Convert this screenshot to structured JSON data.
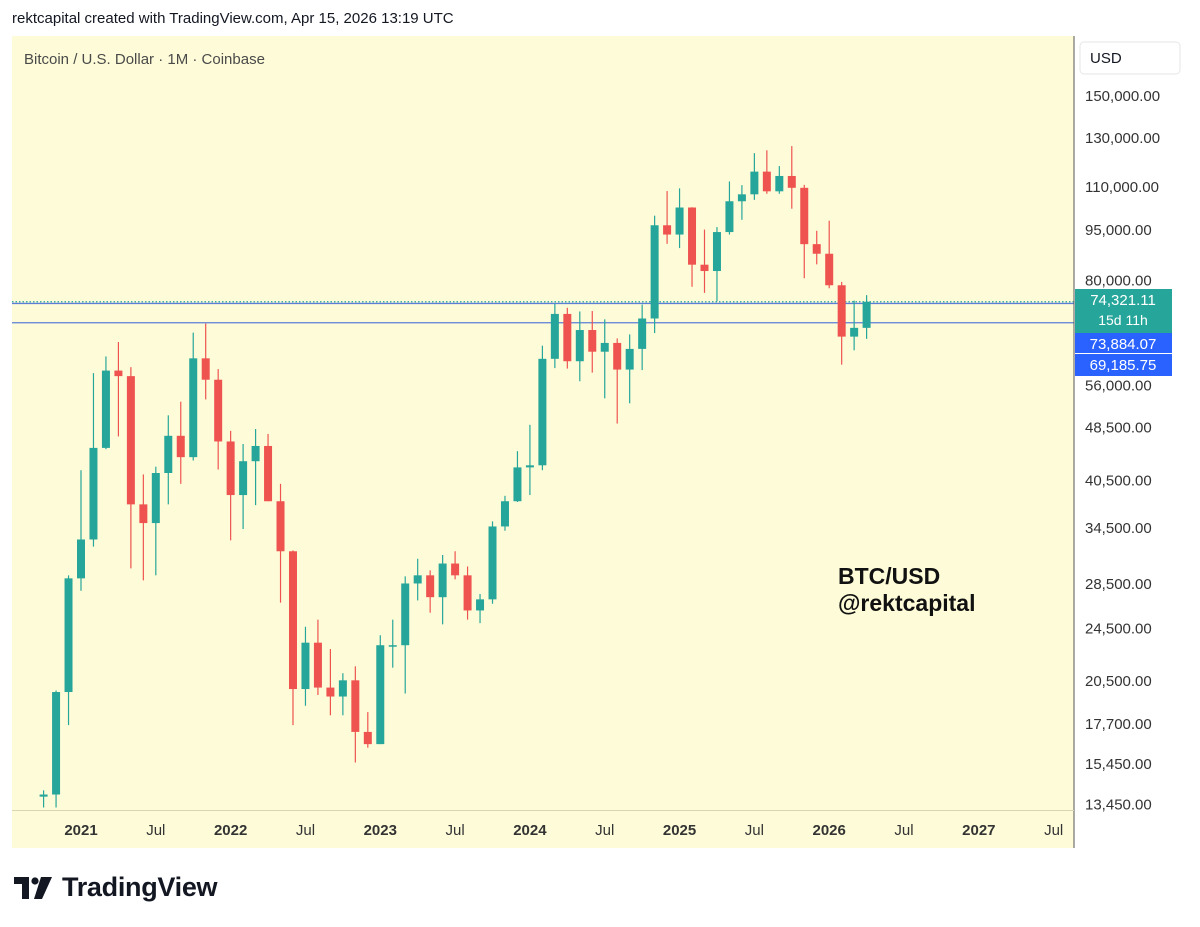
{
  "header": {
    "caption": "rektcapital created with TradingView.com, Apr 15, 2026 13:19 UTC"
  },
  "footer": {
    "brand": "TradingView"
  },
  "colors": {
    "up": "#26a69a",
    "down": "#ef5350",
    "background": "#fefcd8",
    "hline": "#5b7fd9",
    "price_tag_blue": "#2962ff",
    "price_tag_green": "#26a69a"
  },
  "chart_data": {
    "type": "candlestick",
    "title": "Bitcoin / U.S. Dollar · 1M · Coinbase",
    "currency_label": "USD",
    "y_scale": "log",
    "ylim": [
      13200,
      165000
    ],
    "y_ticks": [
      "150,000.00",
      "130,000.00",
      "110,000.00",
      "95,000.00",
      "80,000.00",
      "56,000.00",
      "48,500.00",
      "40,500.00",
      "34,500.00",
      "28,500.00",
      "24,500.00",
      "20,500.00",
      "17,700.00",
      "15,450.00",
      "13,450.00"
    ],
    "x_ticks": [
      {
        "label": "2021",
        "month": "2021-01",
        "bold": true
      },
      {
        "label": "Jul",
        "month": "2021-07",
        "bold": false
      },
      {
        "label": "2022",
        "month": "2022-01",
        "bold": true
      },
      {
        "label": "Jul",
        "month": "2022-07",
        "bold": false
      },
      {
        "label": "2023",
        "month": "2023-01",
        "bold": true
      },
      {
        "label": "Jul",
        "month": "2023-07",
        "bold": false
      },
      {
        "label": "2024",
        "month": "2024-01",
        "bold": true
      },
      {
        "label": "Jul",
        "month": "2024-07",
        "bold": false
      },
      {
        "label": "2025",
        "month": "2025-01",
        "bold": true
      },
      {
        "label": "Jul",
        "month": "2025-07",
        "bold": false
      },
      {
        "label": "2026",
        "month": "2026-01",
        "bold": true
      },
      {
        "label": "Jul",
        "month": "2026-07",
        "bold": false
      },
      {
        "label": "2027",
        "month": "2027-01",
        "bold": true
      },
      {
        "label": "Jul",
        "month": "2027-07",
        "bold": false
      }
    ],
    "candles": [
      {
        "t": "2020-10",
        "o": 13800,
        "h": 14100,
        "l": 13300,
        "c": 13900
      },
      {
        "t": "2020-11",
        "o": 13900,
        "h": 19800,
        "l": 13300,
        "c": 19700
      },
      {
        "t": "2020-12",
        "o": 19700,
        "h": 29300,
        "l": 17600,
        "c": 29000
      },
      {
        "t": "2021-01",
        "o": 29000,
        "h": 41900,
        "l": 27800,
        "c": 33100
      },
      {
        "t": "2021-02",
        "o": 33100,
        "h": 58300,
        "l": 32300,
        "c": 45200
      },
      {
        "t": "2021-03",
        "o": 45200,
        "h": 61700,
        "l": 45000,
        "c": 58800
      },
      {
        "t": "2021-04",
        "o": 58800,
        "h": 64800,
        "l": 47000,
        "c": 57700
      },
      {
        "t": "2021-05",
        "o": 57700,
        "h": 59500,
        "l": 30000,
        "c": 37300
      },
      {
        "t": "2021-06",
        "o": 37300,
        "h": 41300,
        "l": 28800,
        "c": 35000
      },
      {
        "t": "2021-07",
        "o": 35000,
        "h": 42400,
        "l": 29300,
        "c": 41500
      },
      {
        "t": "2021-08",
        "o": 41500,
        "h": 50500,
        "l": 37300,
        "c": 47100
      },
      {
        "t": "2021-09",
        "o": 47100,
        "h": 52900,
        "l": 40000,
        "c": 43800
      },
      {
        "t": "2021-10",
        "o": 43800,
        "h": 66900,
        "l": 43300,
        "c": 61300
      },
      {
        "t": "2021-11",
        "o": 61300,
        "h": 69000,
        "l": 53300,
        "c": 57000
      },
      {
        "t": "2021-12",
        "o": 57000,
        "h": 59100,
        "l": 42000,
        "c": 46200
      },
      {
        "t": "2022-01",
        "o": 46200,
        "h": 47900,
        "l": 33000,
        "c": 38500
      },
      {
        "t": "2022-02",
        "o": 38500,
        "h": 45800,
        "l": 34300,
        "c": 43200
      },
      {
        "t": "2022-03",
        "o": 43200,
        "h": 48200,
        "l": 37200,
        "c": 45500
      },
      {
        "t": "2022-04",
        "o": 45500,
        "h": 47400,
        "l": 37700,
        "c": 37700
      },
      {
        "t": "2022-05",
        "o": 37700,
        "h": 40000,
        "l": 26700,
        "c": 31800
      },
      {
        "t": "2022-06",
        "o": 31800,
        "h": 31900,
        "l": 17600,
        "c": 19900
      },
      {
        "t": "2022-07",
        "o": 19900,
        "h": 24600,
        "l": 18800,
        "c": 23300
      },
      {
        "t": "2022-08",
        "o": 23300,
        "h": 25200,
        "l": 19500,
        "c": 20000
      },
      {
        "t": "2022-09",
        "o": 20000,
        "h": 22800,
        "l": 18200,
        "c": 19400
      },
      {
        "t": "2022-10",
        "o": 19400,
        "h": 21000,
        "l": 18200,
        "c": 20500
      },
      {
        "t": "2022-11",
        "o": 20500,
        "h": 21500,
        "l": 15500,
        "c": 17200
      },
      {
        "t": "2022-12",
        "o": 17200,
        "h": 18400,
        "l": 16300,
        "c": 16500
      },
      {
        "t": "2023-01",
        "o": 16500,
        "h": 23900,
        "l": 16500,
        "c": 23100
      },
      {
        "t": "2023-02",
        "o": 23100,
        "h": 25200,
        "l": 21400,
        "c": 23100
      },
      {
        "t": "2023-03",
        "o": 23100,
        "h": 29200,
        "l": 19600,
        "c": 28500
      },
      {
        "t": "2023-04",
        "o": 28500,
        "h": 31000,
        "l": 26900,
        "c": 29300
      },
      {
        "t": "2023-05",
        "o": 29300,
        "h": 29800,
        "l": 25800,
        "c": 27200
      },
      {
        "t": "2023-06",
        "o": 27200,
        "h": 31400,
        "l": 24800,
        "c": 30500
      },
      {
        "t": "2023-07",
        "o": 30500,
        "h": 31800,
        "l": 28900,
        "c": 29300
      },
      {
        "t": "2023-08",
        "o": 29300,
        "h": 30200,
        "l": 25200,
        "c": 26000
      },
      {
        "t": "2023-09",
        "o": 26000,
        "h": 27500,
        "l": 24900,
        "c": 27000
      },
      {
        "t": "2023-10",
        "o": 27000,
        "h": 35200,
        "l": 26600,
        "c": 34600
      },
      {
        "t": "2023-11",
        "o": 34600,
        "h": 38400,
        "l": 34100,
        "c": 37700
      },
      {
        "t": "2023-12",
        "o": 37700,
        "h": 44700,
        "l": 37600,
        "c": 42300
      },
      {
        "t": "2024-01",
        "o": 42300,
        "h": 48900,
        "l": 38500,
        "c": 42600
      },
      {
        "t": "2024-02",
        "o": 42600,
        "h": 64000,
        "l": 41900,
        "c": 61200
      },
      {
        "t": "2024-03",
        "o": 61200,
        "h": 73800,
        "l": 59300,
        "c": 71300
      },
      {
        "t": "2024-04",
        "o": 71300,
        "h": 72800,
        "l": 59200,
        "c": 60700
      },
      {
        "t": "2024-05",
        "o": 60700,
        "h": 71900,
        "l": 56700,
        "c": 67500
      },
      {
        "t": "2024-06",
        "o": 67500,
        "h": 72000,
        "l": 58400,
        "c": 62700
      },
      {
        "t": "2024-07",
        "o": 62700,
        "h": 70000,
        "l": 53500,
        "c": 64600
      },
      {
        "t": "2024-08",
        "o": 64600,
        "h": 65600,
        "l": 49100,
        "c": 59000
      },
      {
        "t": "2024-09",
        "o": 59000,
        "h": 66500,
        "l": 52600,
        "c": 63300
      },
      {
        "t": "2024-10",
        "o": 63300,
        "h": 73600,
        "l": 58900,
        "c": 70200
      },
      {
        "t": "2024-11",
        "o": 70200,
        "h": 99600,
        "l": 66800,
        "c": 96400
      },
      {
        "t": "2024-12",
        "o": 96400,
        "h": 108300,
        "l": 90500,
        "c": 93400
      },
      {
        "t": "2025-01",
        "o": 93400,
        "h": 109300,
        "l": 89200,
        "c": 102400
      },
      {
        "t": "2025-02",
        "o": 102400,
        "h": 102500,
        "l": 78200,
        "c": 84300
      },
      {
        "t": "2025-03",
        "o": 84300,
        "h": 95000,
        "l": 76600,
        "c": 82500
      },
      {
        "t": "2025-04",
        "o": 82500,
        "h": 95800,
        "l": 74400,
        "c": 94200
      },
      {
        "t": "2025-05",
        "o": 94200,
        "h": 111900,
        "l": 93400,
        "c": 104600
      },
      {
        "t": "2025-06",
        "o": 104600,
        "h": 110500,
        "l": 98200,
        "c": 107100
      },
      {
        "t": "2025-07",
        "o": 107100,
        "h": 123200,
        "l": 105100,
        "c": 115700
      },
      {
        "t": "2025-08",
        "o": 115700,
        "h": 124400,
        "l": 107300,
        "c": 108200
      },
      {
        "t": "2025-09",
        "o": 108200,
        "h": 117900,
        "l": 107300,
        "c": 114000
      },
      {
        "t": "2025-10",
        "o": 114000,
        "h": 126200,
        "l": 102000,
        "c": 109500
      },
      {
        "t": "2025-11",
        "o": 109500,
        "h": 110600,
        "l": 80500,
        "c": 90400
      },
      {
        "t": "2025-12",
        "o": 90400,
        "h": 94600,
        "l": 84400,
        "c": 87500
      },
      {
        "t": "2026-01",
        "o": 87500,
        "h": 97900,
        "l": 77800,
        "c": 78600
      },
      {
        "t": "2026-02",
        "o": 78600,
        "h": 79500,
        "l": 60000,
        "c": 66000
      },
      {
        "t": "2026-03",
        "o": 66000,
        "h": 74600,
        "l": 63000,
        "c": 68000
      },
      {
        "t": "2026-04",
        "o": 68000,
        "h": 76000,
        "l": 65500,
        "c": 74321.11
      }
    ],
    "hlines": [
      {
        "price": 73884.07,
        "color": "#5b7fd9",
        "style": "solid"
      },
      {
        "price": 69185.75,
        "color": "#5b7fd9",
        "style": "solid"
      },
      {
        "price": 74321.11,
        "color": "#26a69a",
        "style": "dotted"
      }
    ],
    "price_tags": [
      {
        "label": "74,321.11",
        "sub": "15d 11h",
        "price": 74321.11,
        "color": "#26a69a"
      },
      {
        "label": "73,884.07",
        "price": 73884.07,
        "color": "#2962ff"
      },
      {
        "label": "69,185.75",
        "price": 69185.75,
        "color": "#2962ff"
      }
    ],
    "annotation": [
      "BTC/USD",
      "@rektcapital"
    ],
    "grid": false
  }
}
